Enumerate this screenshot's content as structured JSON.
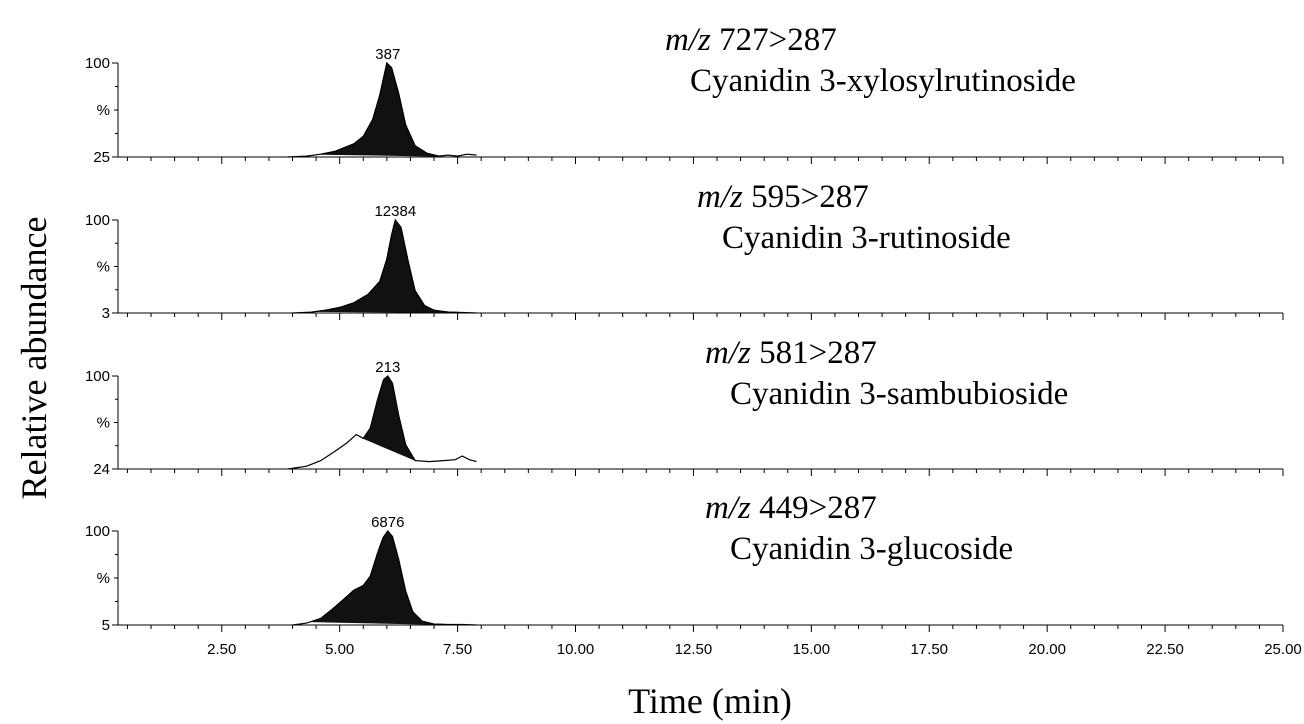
{
  "chart_data": {
    "type": "area",
    "xlabel": "Time (min)",
    "ylabel": "Relative abundance",
    "xlim": [
      0.3,
      25.0
    ],
    "x_ticks": [
      "2.50",
      "5.00",
      "7.50",
      "10.00",
      "12.50",
      "15.00",
      "17.50",
      "20.00",
      "22.50",
      "25.00"
    ],
    "grid": false,
    "panels": [
      {
        "mz_prefix": "m/z",
        "transition": "727>287",
        "compound": "Cyanidin 3-xylosylrutinoside",
        "y_top_label": "100",
        "y_mid_label": "%",
        "y_bottom_label": "25",
        "peak_label": "387",
        "peak_time": 6.02,
        "trace": [
          [
            3.9,
            0
          ],
          [
            4.3,
            1
          ],
          [
            4.6,
            3
          ],
          [
            4.9,
            6
          ],
          [
            5.1,
            10
          ],
          [
            5.3,
            14
          ],
          [
            5.5,
            22
          ],
          [
            5.7,
            40
          ],
          [
            5.85,
            66
          ],
          [
            6.0,
            100
          ],
          [
            6.1,
            95
          ],
          [
            6.25,
            68
          ],
          [
            6.4,
            34
          ],
          [
            6.6,
            12
          ],
          [
            6.85,
            4
          ],
          [
            7.1,
            1
          ],
          [
            7.3,
            2
          ],
          [
            7.5,
            1
          ],
          [
            7.7,
            3
          ],
          [
            7.9,
            2
          ]
        ],
        "filled_range": [
          4.6,
          7.1
        ]
      },
      {
        "mz_prefix": "m/z",
        "transition": "595>287",
        "compound": "Cyanidin 3-rutinoside",
        "y_top_label": "100",
        "y_mid_label": "%",
        "y_bottom_label": "3",
        "peak_label": "12384",
        "peak_time": 6.18,
        "trace": [
          [
            4.0,
            0
          ],
          [
            4.4,
            1
          ],
          [
            4.7,
            3
          ],
          [
            5.0,
            6
          ],
          [
            5.3,
            11
          ],
          [
            5.6,
            20
          ],
          [
            5.85,
            34
          ],
          [
            6.0,
            58
          ],
          [
            6.1,
            84
          ],
          [
            6.18,
            100
          ],
          [
            6.3,
            92
          ],
          [
            6.45,
            56
          ],
          [
            6.6,
            24
          ],
          [
            6.8,
            8
          ],
          [
            7.0,
            3
          ],
          [
            7.3,
            1
          ],
          [
            7.6,
            0.5
          ],
          [
            7.9,
            0
          ]
        ],
        "filled_range": [
          4.5,
          7.5
        ]
      },
      {
        "mz_prefix": "m/z",
        "transition": "581>287",
        "compound": "Cyanidin 3-sambubioside",
        "y_top_label": "100",
        "y_mid_label": "%",
        "y_bottom_label": "24",
        "peak_label": "213",
        "peak_time": 6.02,
        "trace": [
          [
            3.9,
            0
          ],
          [
            4.3,
            3
          ],
          [
            4.6,
            9
          ],
          [
            4.9,
            19
          ],
          [
            5.15,
            28
          ],
          [
            5.35,
            37
          ],
          [
            5.5,
            33
          ],
          [
            5.65,
            44
          ],
          [
            5.8,
            74
          ],
          [
            5.93,
            96
          ],
          [
            6.02,
            100
          ],
          [
            6.12,
            92
          ],
          [
            6.25,
            58
          ],
          [
            6.4,
            26
          ],
          [
            6.6,
            9
          ],
          [
            6.9,
            8
          ],
          [
            7.2,
            9
          ],
          [
            7.45,
            10
          ],
          [
            7.6,
            14
          ],
          [
            7.75,
            10
          ],
          [
            7.9,
            8
          ]
        ],
        "filled_range": [
          5.5,
          6.62
        ]
      },
      {
        "mz_prefix": "m/z",
        "transition": "449>287",
        "compound": "Cyanidin 3-glucoside",
        "y_top_label": "100",
        "y_mid_label": "%",
        "y_bottom_label": "5",
        "peak_label": "6876",
        "peak_time": 6.02,
        "trace": [
          [
            4.0,
            0
          ],
          [
            4.3,
            2
          ],
          [
            4.6,
            7
          ],
          [
            4.85,
            17
          ],
          [
            5.1,
            28
          ],
          [
            5.3,
            37
          ],
          [
            5.5,
            42
          ],
          [
            5.65,
            52
          ],
          [
            5.8,
            76
          ],
          [
            5.92,
            93
          ],
          [
            6.02,
            100
          ],
          [
            6.12,
            94
          ],
          [
            6.25,
            70
          ],
          [
            6.4,
            36
          ],
          [
            6.55,
            14
          ],
          [
            6.75,
            4
          ],
          [
            7.0,
            1
          ],
          [
            7.3,
            0.5
          ],
          [
            7.6,
            0.5
          ],
          [
            7.9,
            0
          ]
        ],
        "filled_range": [
          4.4,
          7.2
        ]
      }
    ]
  }
}
